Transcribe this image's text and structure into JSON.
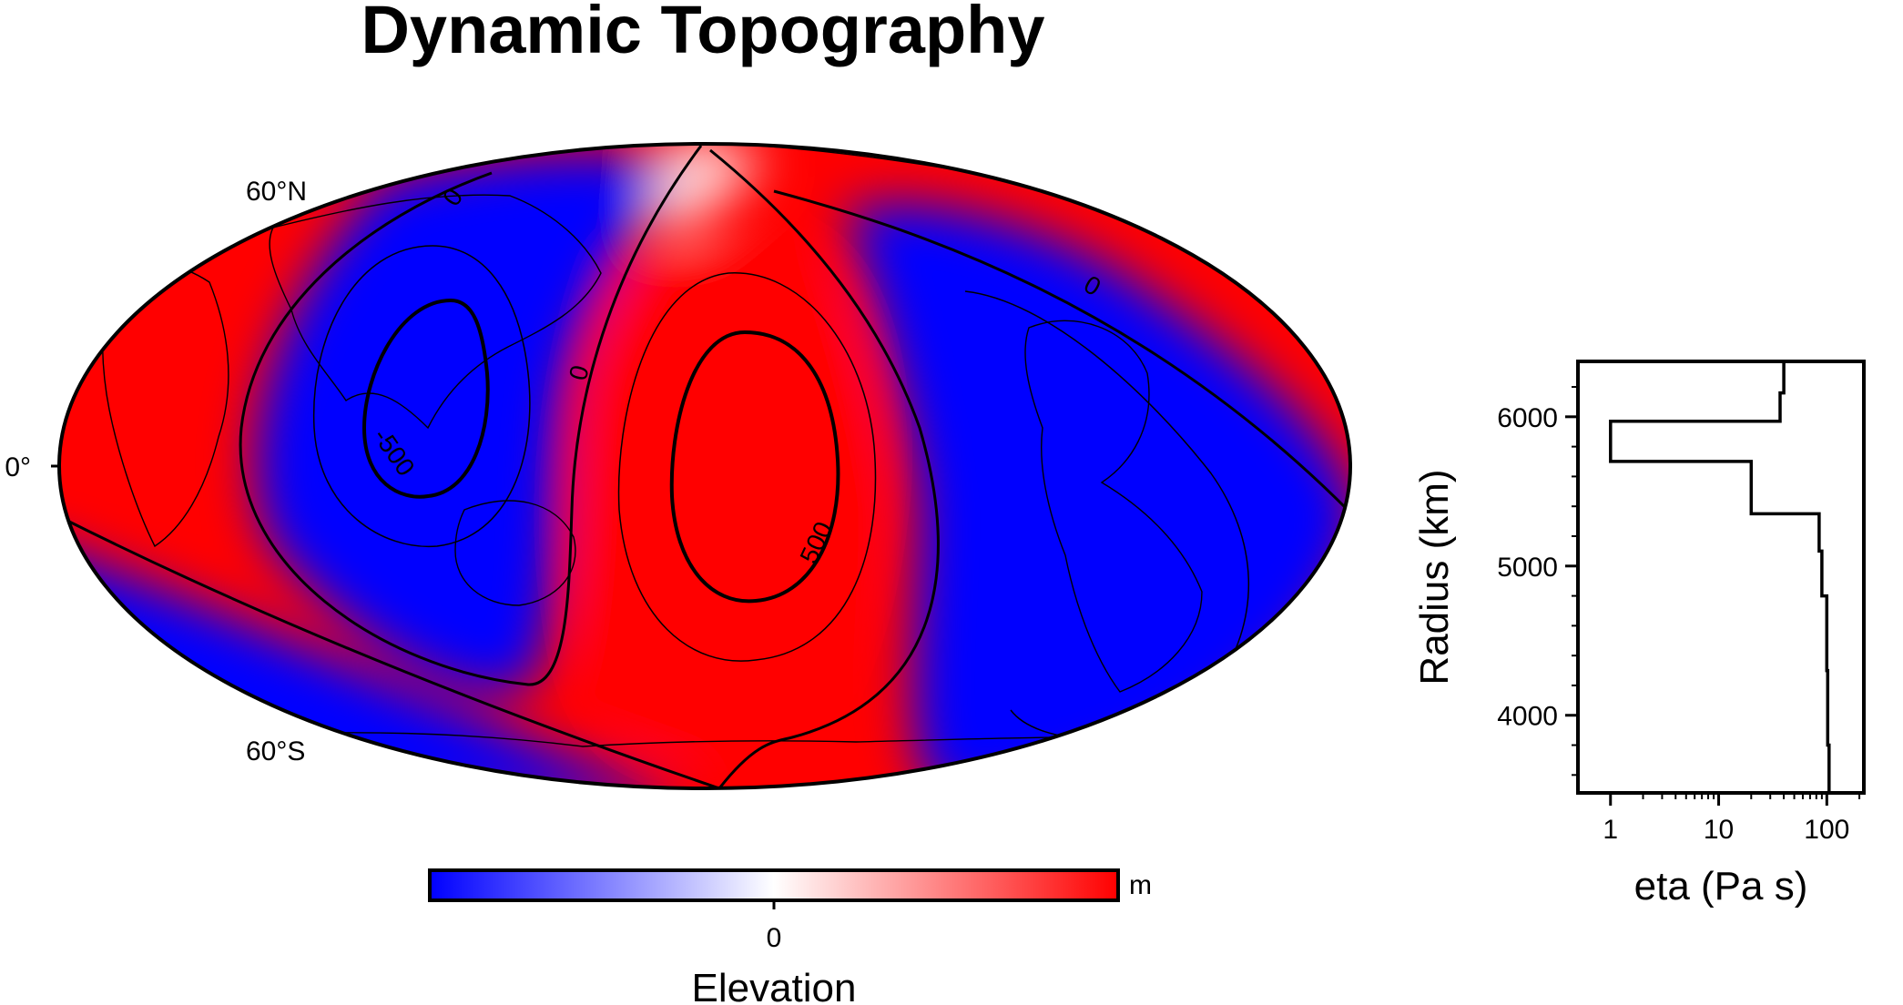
{
  "title": "Dynamic Topography",
  "map": {
    "projection": "Mollweide",
    "lat_labels": [
      "60°N",
      "0°",
      "60°S"
    ],
    "contour_labels": [
      "0",
      "0",
      "0",
      "500",
      "-500"
    ],
    "colormap": {
      "negative": "#0000ff",
      "zero": "#ffffff",
      "positive": "#ff0000"
    }
  },
  "colorbar": {
    "label": "Elevation",
    "unit": "m",
    "ticks": [
      "0"
    ]
  },
  "chart_data": [
    {
      "type": "heatmap",
      "title": "Dynamic Topography",
      "colorbar_label": "Elevation",
      "colorbar_unit": "m",
      "colorbar_ticks": [
        0
      ],
      "contour_levels": [
        -500,
        0,
        500
      ],
      "lat_ticks": [
        "60°N",
        "0°",
        "60°S"
      ]
    },
    {
      "type": "line",
      "xlabel": "eta (Pa s)",
      "ylabel": "Radius (km)",
      "xscale": "log",
      "xlim": [
        0.5,
        220
      ],
      "ylim": [
        3480,
        6371
      ],
      "xticks": [
        1,
        10,
        100
      ],
      "yticks": [
        4000,
        5000,
        6000
      ],
      "series": [
        {
          "x": [
            40,
            40,
            37,
            37,
            1,
            1,
            20,
            20,
            85,
            85,
            90,
            90,
            100,
            100,
            102,
            102,
            105,
            105
          ],
          "y": [
            6371,
            6160,
            6160,
            5970,
            5970,
            5701,
            5701,
            5350,
            5350,
            5100,
            5100,
            4800,
            4800,
            4300,
            4300,
            3800,
            3800,
            3480
          ]
        }
      ],
      "grid": false
    }
  ]
}
